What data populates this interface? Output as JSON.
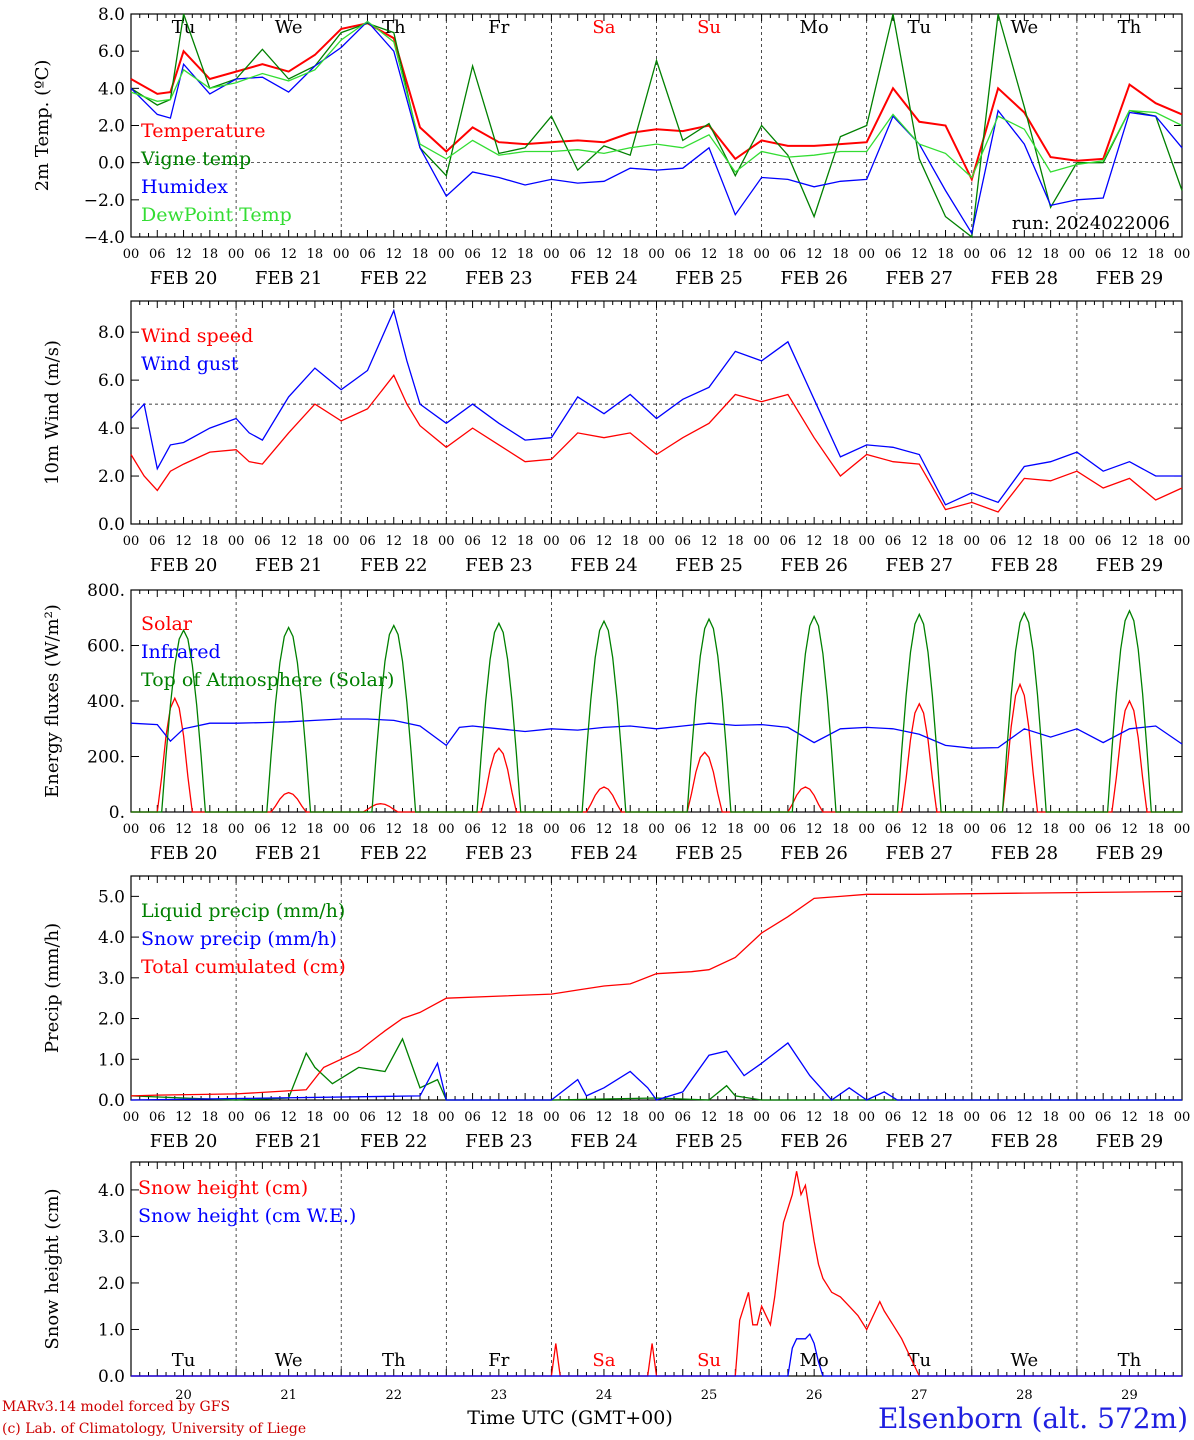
{
  "colors": {
    "red": "#ff0000",
    "green": "#008000",
    "blue": "#0000ff",
    "lightgreen": "#33dd33",
    "darkred": "#cc0000",
    "navy": "#2020e0"
  },
  "hour_labels": [
    "00",
    "06",
    "12",
    "18"
  ],
  "date_labels": [
    "FEB 20",
    "FEB 21",
    "FEB 22",
    "FEB 23",
    "FEB 24",
    "FEB 25",
    "FEB 26",
    "FEB 27",
    "FEB 28",
    "FEB 29"
  ],
  "weekday_labels": [
    {
      "label": "Tu",
      "weekend": false
    },
    {
      "label": "We",
      "weekend": false
    },
    {
      "label": "Th",
      "weekend": false
    },
    {
      "label": "Fr",
      "weekend": false
    },
    {
      "label": "Sa",
      "weekend": true
    },
    {
      "label": "Su",
      "weekend": true
    },
    {
      "label": "Mo",
      "weekend": false
    },
    {
      "label": "Tu",
      "weekend": false
    },
    {
      "label": "We",
      "weekend": false
    },
    {
      "label": "Th",
      "weekend": false
    }
  ],
  "day_numbers": [
    "20",
    "21",
    "22",
    "23",
    "24",
    "25",
    "26",
    "27",
    "28",
    "29"
  ],
  "footer": {
    "model": "MARv3.14 model forced by GFS",
    "credit": "(c) Lab. of Climatology, University of Liege",
    "xlabel": "Time UTC (GMT+00)",
    "station": "Elsenborn (alt. 572m)"
  },
  "chart_data": [
    {
      "type": "line",
      "ylabel": "2m Temp. (ºC)",
      "ylim": [
        -4,
        8
      ],
      "yticks": [
        "8.0",
        "6.0",
        "4.0",
        "2.0",
        "0.0",
        "−2.0",
        "−4.0"
      ],
      "reference_line": 0,
      "annotation": "run: 2024022006",
      "x_unit": "hours since FEB 20 00 UTC",
      "series": [
        {
          "name": "Temperature",
          "color": "red",
          "x": [
            0,
            6,
            9,
            12,
            18,
            24,
            30,
            36,
            42,
            48,
            54,
            60,
            66,
            72,
            78,
            84,
            90,
            96,
            102,
            108,
            114,
            120,
            126,
            132,
            138,
            144,
            150,
            156,
            162,
            168,
            174,
            180,
            186,
            192,
            198,
            204,
            210,
            216,
            222,
            228,
            234,
            240
          ],
          "y": [
            4.5,
            3.7,
            3.8,
            6.0,
            4.5,
            4.9,
            5.3,
            4.9,
            5.8,
            7.2,
            7.5,
            6.7,
            1.9,
            0.6,
            1.9,
            1.1,
            1.0,
            1.1,
            1.2,
            1.1,
            1.6,
            1.8,
            1.7,
            2.0,
            0.2,
            1.2,
            0.9,
            0.9,
            1.0,
            1.1,
            4.0,
            2.2,
            2.0,
            -0.9,
            4.0,
            2.7,
            0.3,
            0.1,
            0.2,
            4.2,
            3.2,
            2.6
          ]
        },
        {
          "name": "Vigne temp",
          "color": "green",
          "x": [
            0,
            6,
            9,
            12,
            18,
            24,
            30,
            36,
            42,
            48,
            54,
            60,
            66,
            72,
            78,
            84,
            90,
            96,
            102,
            108,
            114,
            120,
            126,
            132,
            138,
            144,
            150,
            156,
            162,
            168,
            174,
            180,
            186,
            192,
            198,
            204,
            210,
            216,
            222,
            228,
            234,
            240
          ],
          "y": [
            4.0,
            3.1,
            3.4,
            8.0,
            4.0,
            4.5,
            6.1,
            4.5,
            5.2,
            7.0,
            7.5,
            7.0,
            0.8,
            -0.7,
            5.2,
            0.5,
            0.8,
            2.5,
            -0.4,
            0.9,
            0.4,
            5.5,
            1.2,
            2.1,
            -0.7,
            2.0,
            0.4,
            -2.9,
            1.4,
            2.0,
            8.0,
            0.2,
            -2.9,
            -4.0,
            8.0,
            3.0,
            -2.4,
            0.0,
            0.0,
            2.8,
            2.5,
            -1.5
          ]
        },
        {
          "name": "Humidex",
          "color": "blue",
          "x": [
            0,
            6,
            9,
            12,
            18,
            24,
            30,
            36,
            42,
            48,
            54,
            60,
            66,
            72,
            78,
            84,
            90,
            96,
            102,
            108,
            114,
            120,
            126,
            132,
            138,
            144,
            150,
            156,
            162,
            168,
            174,
            180,
            186,
            192,
            198,
            204,
            210,
            216,
            222,
            228,
            234,
            240
          ],
          "y": [
            4.0,
            2.6,
            2.4,
            5.3,
            3.7,
            4.5,
            4.6,
            3.8,
            5.2,
            6.2,
            7.6,
            6.0,
            0.8,
            -1.8,
            -0.5,
            -0.8,
            -1.2,
            -0.9,
            -1.1,
            -1.0,
            -0.3,
            -0.4,
            -0.3,
            0.8,
            -2.8,
            -0.8,
            -0.9,
            -1.3,
            -1.0,
            -0.9,
            2.5,
            1.0,
            -1.5,
            -3.8,
            2.8,
            1.0,
            -2.3,
            -2.0,
            -1.9,
            2.7,
            2.5,
            0.8
          ]
        },
        {
          "name": "DewPoint Temp",
          "color": "lightgreen",
          "x": [
            0,
            6,
            9,
            12,
            18,
            24,
            30,
            36,
            42,
            48,
            54,
            60,
            66,
            72,
            78,
            84,
            90,
            96,
            102,
            108,
            114,
            120,
            126,
            132,
            138,
            144,
            150,
            156,
            162,
            168,
            174,
            180,
            186,
            192,
            198,
            204,
            210,
            216,
            222,
            228,
            234,
            240
          ],
          "y": [
            3.8,
            3.3,
            3.4,
            5.0,
            4.0,
            4.3,
            4.8,
            4.4,
            5.0,
            6.6,
            7.6,
            6.5,
            1.0,
            0.2,
            1.2,
            0.4,
            0.6,
            0.6,
            0.7,
            0.5,
            0.8,
            1.0,
            0.8,
            1.5,
            -0.5,
            0.6,
            0.3,
            0.4,
            0.6,
            0.6,
            2.6,
            1.0,
            0.5,
            -0.8,
            2.5,
            1.8,
            -0.5,
            -0.1,
            0.1,
            2.8,
            2.7,
            2.0
          ]
        }
      ]
    },
    {
      "type": "line",
      "ylabel": "10m Wind (m/s)",
      "ylim": [
        0,
        9.3
      ],
      "yticks": [
        "8.0",
        "6.0",
        "4.0",
        "2.0",
        "0.0"
      ],
      "reference_line": 5,
      "series": [
        {
          "name": "Wind speed",
          "color": "red",
          "x": [
            0,
            3,
            6,
            9,
            12,
            18,
            24,
            27,
            30,
            36,
            42,
            48,
            54,
            60,
            63,
            66,
            72,
            78,
            84,
            90,
            96,
            102,
            108,
            114,
            120,
            126,
            132,
            138,
            144,
            150,
            156,
            162,
            168,
            174,
            180,
            186,
            192,
            198,
            204,
            210,
            216,
            222,
            228,
            234,
            240
          ],
          "y": [
            2.9,
            2.0,
            1.4,
            2.2,
            2.5,
            3.0,
            3.1,
            2.6,
            2.5,
            3.8,
            5.0,
            4.3,
            4.8,
            6.2,
            5.0,
            4.1,
            3.2,
            4.0,
            3.3,
            2.6,
            2.7,
            3.8,
            3.6,
            3.8,
            2.9,
            3.6,
            4.2,
            5.4,
            5.1,
            5.4,
            3.6,
            2.0,
            2.9,
            2.6,
            2.5,
            0.6,
            0.9,
            0.5,
            1.9,
            1.8,
            2.2,
            1.5,
            1.9,
            1.0,
            1.5
          ]
        },
        {
          "name": "Wind gust",
          "color": "blue",
          "x": [
            0,
            3,
            6,
            9,
            12,
            18,
            24,
            27,
            30,
            36,
            42,
            48,
            54,
            60,
            63,
            66,
            72,
            78,
            84,
            90,
            96,
            102,
            108,
            114,
            120,
            126,
            132,
            138,
            144,
            150,
            156,
            162,
            168,
            174,
            180,
            186,
            192,
            198,
            204,
            210,
            216,
            222,
            228,
            234,
            240
          ],
          "y": [
            4.4,
            5.0,
            2.3,
            3.3,
            3.4,
            4.0,
            4.4,
            3.8,
            3.5,
            5.3,
            6.5,
            5.6,
            6.4,
            8.9,
            6.8,
            5.0,
            4.2,
            5.0,
            4.2,
            3.5,
            3.6,
            5.3,
            4.6,
            5.4,
            4.4,
            5.2,
            5.7,
            7.2,
            6.8,
            7.6,
            5.2,
            2.8,
            3.3,
            3.2,
            2.9,
            0.8,
            1.3,
            0.9,
            2.4,
            2.6,
            3.0,
            2.2,
            2.6,
            2.0,
            2.0
          ]
        }
      ]
    },
    {
      "type": "line",
      "ylabel": "Energy fluxes (W/m²)",
      "ylim": [
        0,
        800
      ],
      "yticks": [
        "800.",
        "600.",
        "400.",
        "200.",
        "0."
      ],
      "series": [
        {
          "name": "Solar",
          "color": "red",
          "daily_peaks": [
            410,
            70,
            30,
            230,
            90,
            215,
            90,
            390,
            460,
            400
          ],
          "peak_hours": [
            10,
            12,
            9,
            12,
            12,
            11,
            10,
            12,
            11,
            12
          ]
        },
        {
          "name": "Infrared",
          "color": "blue",
          "x": [
            0,
            6,
            9,
            12,
            18,
            24,
            30,
            36,
            42,
            48,
            54,
            60,
            66,
            72,
            75,
            78,
            84,
            90,
            96,
            102,
            108,
            114,
            120,
            126,
            132,
            138,
            144,
            150,
            156,
            162,
            168,
            174,
            180,
            186,
            192,
            198,
            204,
            210,
            216,
            222,
            228,
            234,
            240
          ],
          "y": [
            320,
            315,
            255,
            300,
            320,
            320,
            322,
            325,
            330,
            335,
            335,
            330,
            310,
            240,
            305,
            310,
            300,
            290,
            300,
            295,
            305,
            310,
            300,
            310,
            320,
            312,
            315,
            305,
            250,
            300,
            305,
            300,
            280,
            240,
            230,
            232,
            300,
            270,
            300,
            250,
            300,
            310,
            245
          ]
        },
        {
          "name": "Top of Atmosphere (Solar)",
          "color": "green",
          "daily_peaks": [
            655,
            665,
            672,
            680,
            688,
            695,
            705,
            712,
            718,
            725
          ],
          "peak_hours": [
            12,
            12,
            12,
            12,
            12,
            12,
            12,
            12,
            12,
            12
          ]
        }
      ]
    },
    {
      "type": "line",
      "ylabel": "Precip (mm/h)",
      "ylim": [
        0,
        5.5
      ],
      "yticks": [
        "5.0",
        "4.0",
        "3.0",
        "2.0",
        "1.0",
        "0.0"
      ],
      "series": [
        {
          "name": "Liquid precip (mm/h)",
          "color": "green",
          "x": [
            0,
            12,
            24,
            36,
            40,
            42,
            46,
            52,
            58,
            62,
            66,
            70,
            72,
            96,
            120,
            132,
            136,
            138,
            144,
            240
          ],
          "y": [
            0.1,
            0.05,
            0.0,
            0.05,
            1.15,
            0.8,
            0.4,
            0.8,
            0.7,
            1.5,
            0.3,
            0.5,
            0.0,
            0.0,
            0.05,
            0.0,
            0.35,
            0.1,
            0.0,
            0.0
          ]
        },
        {
          "name": "Snow precip (mm/h)",
          "color": "blue",
          "x": [
            0,
            66,
            70,
            72,
            96,
            102,
            104,
            108,
            114,
            118,
            120,
            126,
            132,
            136,
            140,
            144,
            150,
            155,
            160,
            164,
            168,
            172,
            175,
            180,
            240
          ],
          "y": [
            0.0,
            0.1,
            0.9,
            0.0,
            0.0,
            0.5,
            0.1,
            0.3,
            0.7,
            0.3,
            0.0,
            0.2,
            1.1,
            1.2,
            0.6,
            0.9,
            1.4,
            0.6,
            0.0,
            0.3,
            0.0,
            0.2,
            0.0,
            0.0,
            0.0
          ]
        },
        {
          "name": "Total cumulated (cm)",
          "color": "red",
          "x": [
            0,
            6,
            24,
            40,
            44,
            52,
            58,
            62,
            66,
            72,
            84,
            96,
            102,
            108,
            114,
            120,
            128,
            132,
            138,
            144,
            150,
            156,
            162,
            168,
            180,
            204,
            240
          ],
          "y": [
            0.1,
            0.12,
            0.15,
            0.25,
            0.8,
            1.2,
            1.7,
            2.0,
            2.15,
            2.5,
            2.55,
            2.6,
            2.7,
            2.8,
            2.85,
            3.1,
            3.15,
            3.2,
            3.5,
            4.1,
            4.5,
            4.95,
            5.0,
            5.05,
            5.05,
            5.08,
            5.12
          ]
        }
      ]
    },
    {
      "type": "line",
      "ylabel": "Snow height (cm)",
      "ylim": [
        0,
        4.6
      ],
      "yticks": [
        "4.0",
        "3.0",
        "2.0",
        "1.0",
        "0.0"
      ],
      "series": [
        {
          "name": "Snow height (cm)",
          "color": "red",
          "x": [
            0,
            96,
            97,
            98,
            118,
            119,
            120,
            138,
            139,
            141,
            142,
            143,
            144,
            146,
            147,
            149,
            151,
            152,
            153,
            154,
            156,
            157,
            158,
            160,
            162,
            164,
            166,
            168,
            171,
            172,
            174,
            176,
            180,
            240
          ],
          "y": [
            0,
            0,
            0.7,
            0,
            0,
            0.7,
            0,
            0,
            1.2,
            1.8,
            1.1,
            1.1,
            1.5,
            1.1,
            1.7,
            3.3,
            3.9,
            4.4,
            3.9,
            4.1,
            2.9,
            2.4,
            2.1,
            1.8,
            1.7,
            1.5,
            1.3,
            1.0,
            1.6,
            1.4,
            1.1,
            0.8,
            0,
            0
          ]
        },
        {
          "name": "Snow height (cm W.E.)",
          "color": "blue",
          "x": [
            0,
            150,
            151,
            152,
            154,
            155,
            156,
            157,
            158,
            240
          ],
          "y": [
            0,
            0,
            0.6,
            0.8,
            0.8,
            0.9,
            0.7,
            0.3,
            0,
            0
          ]
        }
      ]
    }
  ]
}
